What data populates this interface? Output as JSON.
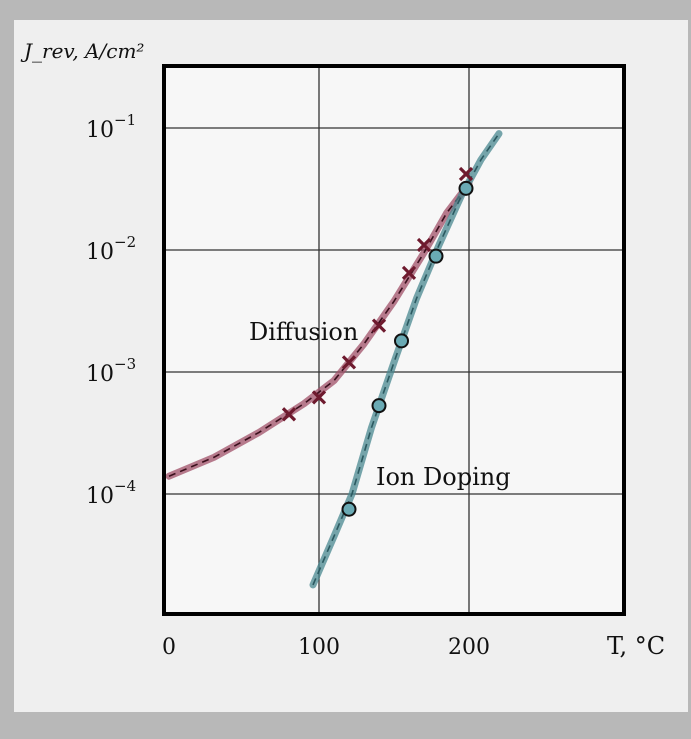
{
  "chart_data": {
    "type": "scatter",
    "title": "",
    "ylabel": "J_rev, A/cm²",
    "xlabel": "T, °C",
    "x_ticks": [
      "0",
      "100",
      "200"
    ],
    "y_ticks": [
      "10^-1",
      "10^-2",
      "10^-3",
      "10^-4"
    ],
    "xlim": [
      0,
      300
    ],
    "ylim": [
      1e-05,
      0.3
    ],
    "y_scale": "log",
    "grid": true,
    "series": [
      {
        "name": "Diffusion",
        "marker": "x",
        "color": "#6e1a2e",
        "line_color": "#a05068",
        "points": [
          [
            80,
            0.00045
          ],
          [
            100,
            0.00062
          ],
          [
            120,
            0.0012
          ],
          [
            140,
            0.0024
          ],
          [
            160,
            0.0065
          ],
          [
            170,
            0.011
          ],
          [
            198,
            0.042
          ]
        ],
        "curve": [
          [
            0,
            0.00014
          ],
          [
            30,
            0.0002
          ],
          [
            60,
            0.00032
          ],
          [
            90,
            0.00055
          ],
          [
            110,
            0.00085
          ],
          [
            130,
            0.0017
          ],
          [
            150,
            0.0038
          ],
          [
            170,
            0.0095
          ],
          [
            185,
            0.02
          ],
          [
            200,
            0.035
          ]
        ]
      },
      {
        "name": "Ion Doping",
        "marker": "o",
        "color": "#6aaab4",
        "line_color": "#4a8890",
        "points": [
          [
            120,
            7.5e-05
          ],
          [
            140,
            0.00053
          ],
          [
            155,
            0.0018
          ],
          [
            178,
            0.0089
          ],
          [
            198,
            0.032
          ]
        ],
        "curve": [
          [
            96,
            1.8e-05
          ],
          [
            110,
            4.5e-05
          ],
          [
            122,
            0.0001
          ],
          [
            135,
            0.00035
          ],
          [
            150,
            0.0012
          ],
          [
            165,
            0.004
          ],
          [
            180,
            0.011
          ],
          [
            195,
            0.028
          ],
          [
            208,
            0.055
          ],
          [
            220,
            0.09
          ]
        ]
      }
    ]
  }
}
